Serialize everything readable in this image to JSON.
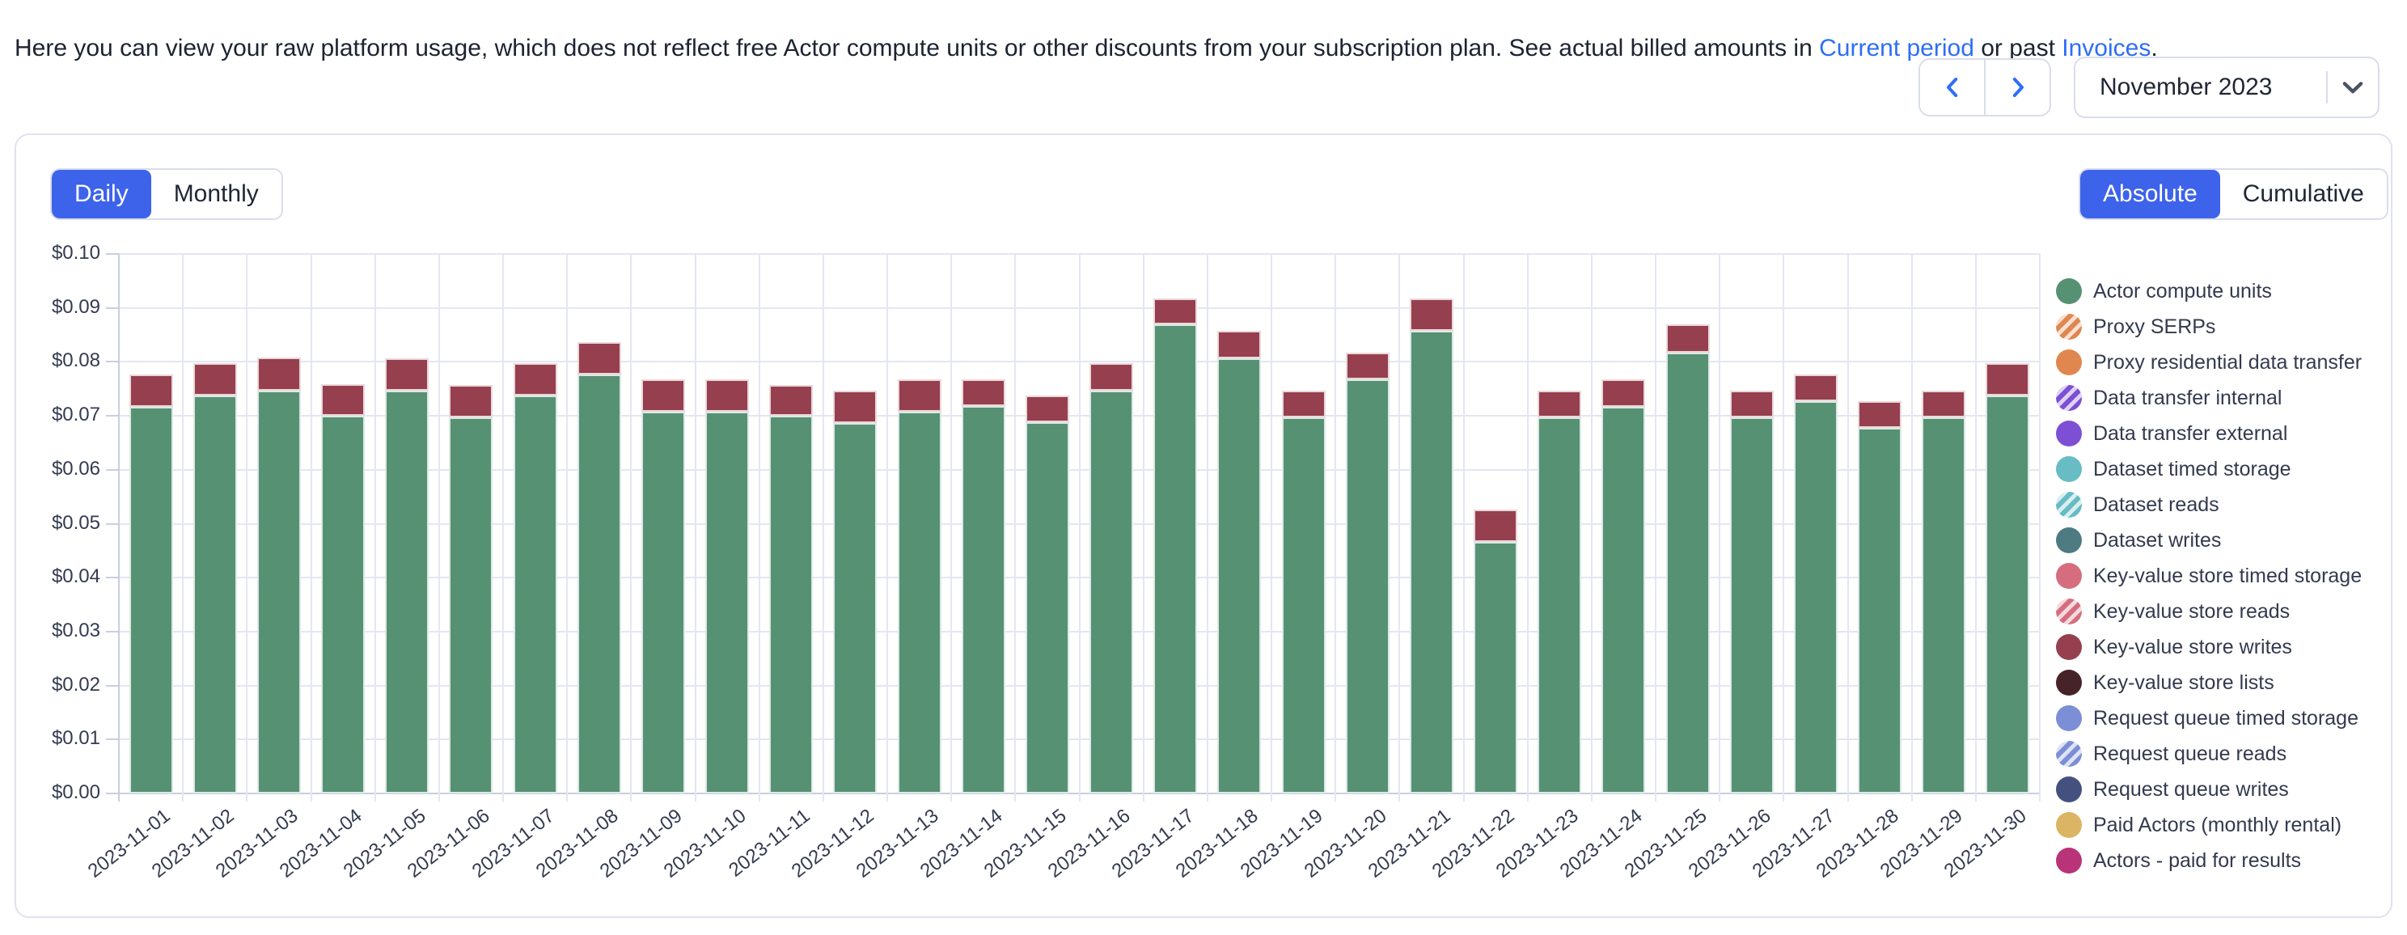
{
  "header": {
    "text_before": "Here you can view your raw platform usage, which does not reflect free Actor compute units or other discounts from your subscription plan. See actual billed amounts in ",
    "link_current_period": "Current period",
    "text_between": " or past ",
    "link_invoices": "Invoices",
    "text_after": "."
  },
  "period_nav": {
    "selected_period": "November 2023",
    "prev_icon": "chevron-left",
    "next_icon": "chevron-right",
    "select_icon": "chevron-down"
  },
  "toggles": {
    "granularity": [
      "Daily",
      "Monthly"
    ],
    "granularity_selected": "Daily",
    "mode": [
      "Absolute",
      "Cumulative"
    ],
    "mode_selected": "Absolute"
  },
  "colors": {
    "accent_blue": "#3d63ea",
    "link_blue": "#2e6ef5",
    "bar_green": "#569173",
    "bar_maroon": "#963f4e",
    "grid": "#e4e6f2",
    "axis": "#c9cee2"
  },
  "chart_data": {
    "type": "bar",
    "stacked": true,
    "title": "",
    "xlabel": "",
    "ylabel": "",
    "categories": [
      "2023-11-01",
      "2023-11-02",
      "2023-11-03",
      "2023-11-04",
      "2023-11-05",
      "2023-11-06",
      "2023-11-07",
      "2023-11-08",
      "2023-11-09",
      "2023-11-10",
      "2023-11-11",
      "2023-11-12",
      "2023-11-13",
      "2023-11-14",
      "2023-11-15",
      "2023-11-16",
      "2023-11-17",
      "2023-11-18",
      "2023-11-19",
      "2023-11-20",
      "2023-11-21",
      "2023-11-22",
      "2023-11-23",
      "2023-11-24",
      "2023-11-25",
      "2023-11-26",
      "2023-11-27",
      "2023-11-28",
      "2023-11-29",
      "2023-11-30"
    ],
    "series": [
      {
        "name": "Actor compute units",
        "color": "#569173",
        "values": [
          0.0717,
          0.0737,
          0.0747,
          0.07,
          0.0747,
          0.0697,
          0.0737,
          0.0777,
          0.0707,
          0.0707,
          0.07,
          0.0687,
          0.0708,
          0.0718,
          0.0688,
          0.0747,
          0.087,
          0.0807,
          0.0697,
          0.0768,
          0.0857,
          0.0466,
          0.0697,
          0.0717,
          0.0817,
          0.0697,
          0.0727,
          0.0677,
          0.0697,
          0.0737
        ]
      },
      {
        "name": "Key-value store writes",
        "color": "#963f4e",
        "values": [
          0.0059,
          0.006,
          0.0061,
          0.0058,
          0.006,
          0.006,
          0.0061,
          0.006,
          0.006,
          0.006,
          0.0057,
          0.006,
          0.006,
          0.005,
          0.0049,
          0.005,
          0.0048,
          0.005,
          0.005,
          0.0049,
          0.006,
          0.006,
          0.005,
          0.005,
          0.0052,
          0.005,
          0.005,
          0.005,
          0.005,
          0.006
        ]
      }
    ],
    "ylim": [
      0,
      0.1
    ],
    "y_tick_step": 0.01,
    "y_ticks": [
      "$0.00",
      "$0.01",
      "$0.02",
      "$0.03",
      "$0.04",
      "$0.05",
      "$0.06",
      "$0.07",
      "$0.08",
      "$0.09",
      "$0.10"
    ],
    "grid": true,
    "legend_position": "right"
  },
  "legend": [
    {
      "label": "Actor compute units",
      "color": "#569173",
      "pattern": "solid"
    },
    {
      "label": "Proxy SERPs",
      "color": "#e0874f",
      "pattern": "striped"
    },
    {
      "label": "Proxy residential data transfer",
      "color": "#e0874f",
      "pattern": "solid"
    },
    {
      "label": "Data transfer internal",
      "color": "#7d4fd4",
      "pattern": "striped"
    },
    {
      "label": "Data transfer external",
      "color": "#7d4fd4",
      "pattern": "solid"
    },
    {
      "label": "Dataset timed storage",
      "color": "#68bcc4",
      "pattern": "solid"
    },
    {
      "label": "Dataset reads",
      "color": "#68bcc4",
      "pattern": "striped"
    },
    {
      "label": "Dataset writes",
      "color": "#4e7a82",
      "pattern": "solid"
    },
    {
      "label": "Key-value store timed storage",
      "color": "#d66d7e",
      "pattern": "solid"
    },
    {
      "label": "Key-value store reads",
      "color": "#d66d7e",
      "pattern": "striped"
    },
    {
      "label": "Key-value store writes",
      "color": "#963f4e",
      "pattern": "solid"
    },
    {
      "label": "Key-value store lists",
      "color": "#462229",
      "pattern": "solid"
    },
    {
      "label": "Request queue timed storage",
      "color": "#7b8ed6",
      "pattern": "solid"
    },
    {
      "label": "Request queue reads",
      "color": "#7b8ed6",
      "pattern": "striped"
    },
    {
      "label": "Request queue writes",
      "color": "#44517e",
      "pattern": "solid"
    },
    {
      "label": "Paid Actors (monthly rental)",
      "color": "#dcb564",
      "pattern": "solid"
    },
    {
      "label": "Actors - paid for results",
      "color": "#b83377",
      "pattern": "solid"
    }
  ]
}
